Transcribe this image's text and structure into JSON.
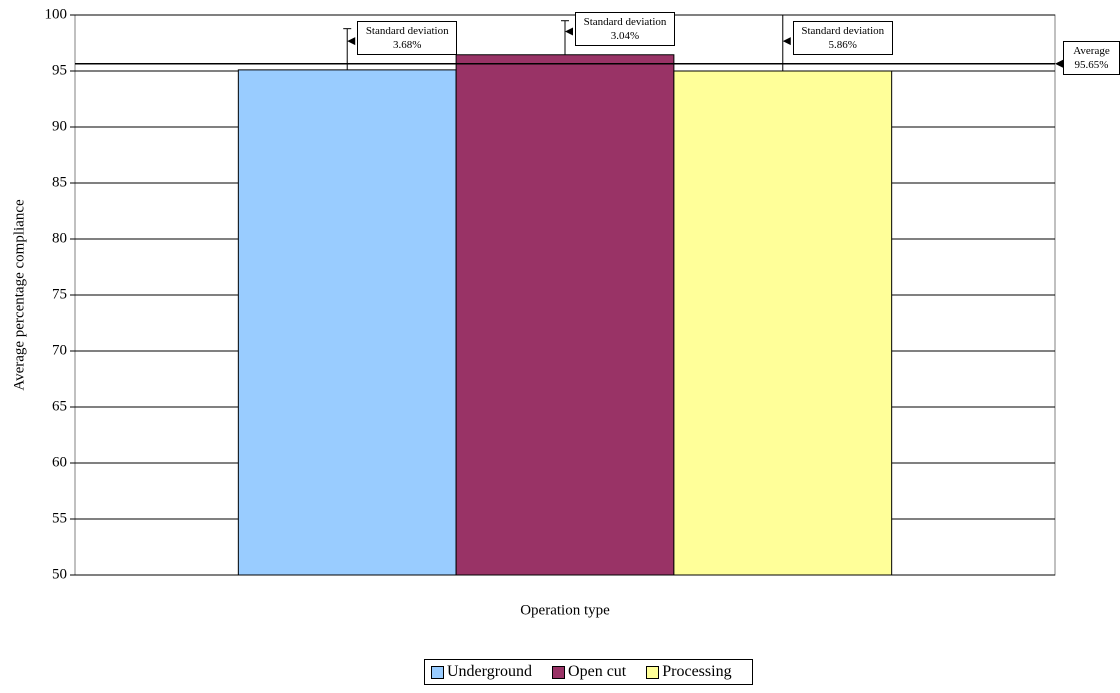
{
  "chart_data": {
    "type": "bar",
    "y_label": "Average percentage compliance",
    "x_label": "Operation type",
    "categories": [
      null
    ],
    "series": [
      {
        "name": "Underground",
        "color": "#99ccff",
        "values": [
          95.1
        ],
        "errors": [
          3.68
        ]
      },
      {
        "name": "Open cut",
        "color": "#993366",
        "values": [
          96.45
        ],
        "errors": [
          3.04
        ]
      },
      {
        "name": "Processing",
        "color": "#ffff99",
        "values": [
          95.0
        ],
        "errors": [
          5.86
        ]
      }
    ],
    "annotations": [
      "Standard deviation 3.68%",
      "Standard deviation 3.04%",
      "Standard deviation 5.86%"
    ],
    "average": {
      "value": 95.65,
      "label": "Average 95.65%"
    },
    "ylim": [
      50,
      100
    ],
    "yticks": [
      50,
      55,
      60,
      65,
      70,
      75,
      80,
      85,
      90,
      95,
      100
    ],
    "grid": true,
    "legend": "bottom"
  }
}
